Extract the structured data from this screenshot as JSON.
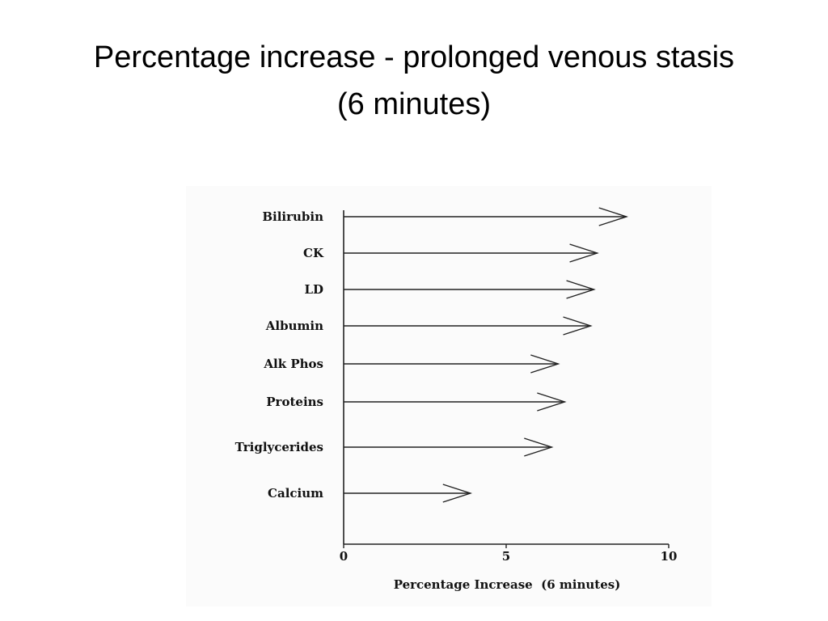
{
  "slide": {
    "title_line1": "Percentage increase - prolonged venous stasis",
    "title_line2": "(6 minutes)"
  },
  "chart_data": {
    "type": "bar",
    "orientation": "horizontal",
    "mark_style": "arrow",
    "categories": [
      "Bilirubin",
      "CK",
      "LD",
      "Albumin",
      "Alk Phos",
      "Proteins",
      "Triglycerides",
      "Calcium"
    ],
    "values": [
      8.7,
      7.8,
      7.7,
      7.6,
      6.6,
      6.8,
      6.4,
      3.9
    ],
    "xlim": [
      0,
      10
    ],
    "xticks": [
      0,
      5,
      10
    ],
    "xlabel": "Percentage Increase  (6 minutes)",
    "ylabel": "",
    "grid": false,
    "legend": "none"
  }
}
